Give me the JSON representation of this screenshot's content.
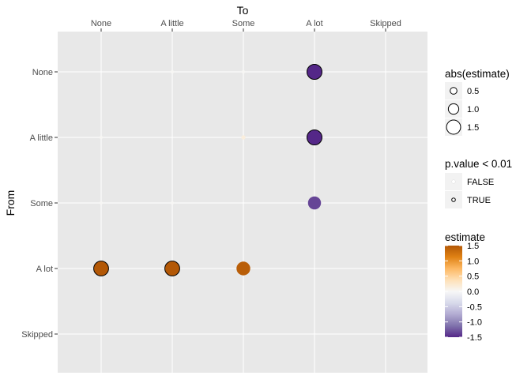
{
  "chart_data": {
    "type": "scatter",
    "x_title": "To",
    "y_title": "From",
    "x_categories": [
      "None",
      "A little",
      "Some",
      "A lot",
      "Skipped"
    ],
    "y_categories": [
      "None",
      "A little",
      "Some",
      "A lot",
      "Skipped"
    ],
    "points": [
      {
        "from": "None",
        "to": "A little",
        "estimate": 0.02,
        "significant": false
      },
      {
        "from": "None",
        "to": "Some",
        "estimate": 0.02,
        "significant": false
      },
      {
        "from": "None",
        "to": "A lot",
        "estimate": -1.62,
        "significant": true
      },
      {
        "from": "A little",
        "to": "None",
        "estimate": 0.02,
        "significant": false
      },
      {
        "from": "A little",
        "to": "Some",
        "estimate": 0.15,
        "significant": false
      },
      {
        "from": "A little",
        "to": "A lot",
        "estimate": -1.62,
        "significant": true
      },
      {
        "from": "Some",
        "to": "None",
        "estimate": 0.02,
        "significant": false
      },
      {
        "from": "Some",
        "to": "A little",
        "estimate": 0.02,
        "significant": false
      },
      {
        "from": "Some",
        "to": "A lot",
        "estimate": -1.35,
        "significant": false
      },
      {
        "from": "A lot",
        "to": "None",
        "estimate": 1.6,
        "significant": true
      },
      {
        "from": "A lot",
        "to": "A little",
        "estimate": 1.6,
        "significant": true
      },
      {
        "from": "A lot",
        "to": "Some",
        "estimate": 1.45,
        "significant": false
      }
    ],
    "size_legend": {
      "title": "abs(estimate)",
      "values": [
        0.5,
        1.0,
        1.5
      ],
      "labels": [
        "0.5",
        "1.0",
        "1.5"
      ]
    },
    "stroke_legend": {
      "title": "p.value < 0.01",
      "labels": [
        "FALSE",
        "TRUE"
      ]
    },
    "color_legend": {
      "title": "estimate",
      "range": [
        -1.5,
        1.5
      ],
      "ticks": [
        1.5,
        1.0,
        0.5,
        0.0,
        -0.5,
        -1.0,
        -1.5
      ],
      "tick_labels": [
        "1.5",
        "1.0",
        "0.5",
        "0.0",
        "-0.5",
        "-1.0",
        "-1.5"
      ],
      "palette": [
        "#542788",
        "#8073ac",
        "#b2abd2",
        "#d8daeb",
        "#f7f7f7",
        "#fee0b6",
        "#fdb863",
        "#e08214",
        "#b35806"
      ]
    },
    "panel_background": "#e8e8e8",
    "grid_color": "#ffffff",
    "legend_position": "right"
  }
}
